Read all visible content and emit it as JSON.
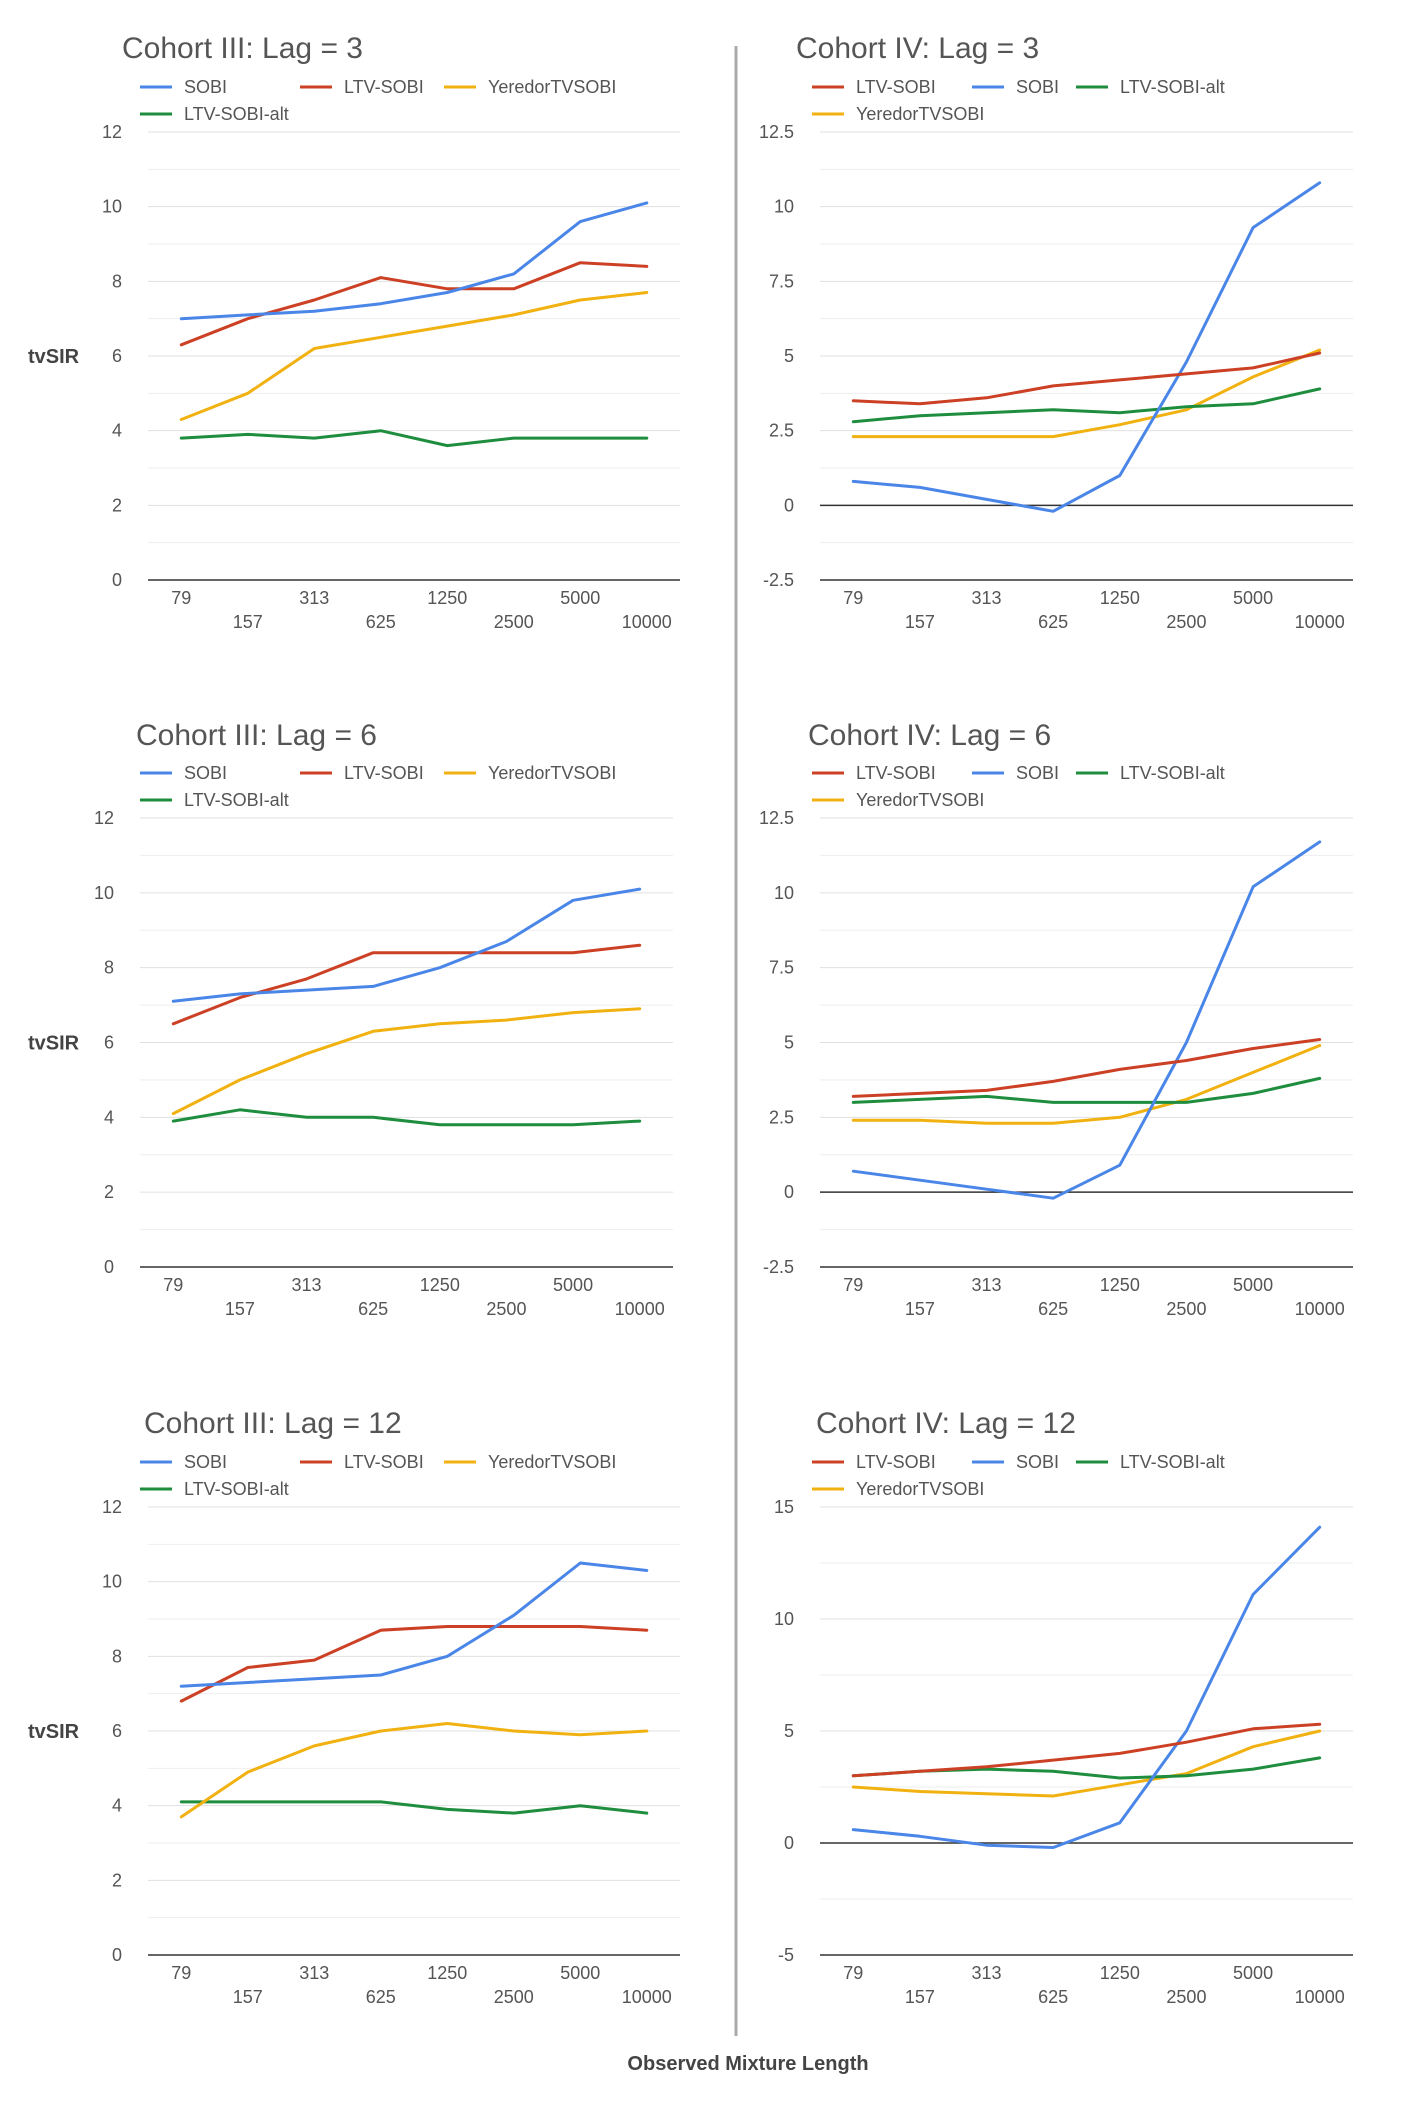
{
  "figure": {
    "y_axis_title": "tvSIR",
    "x_axis_title": "Observed Mixture Length"
  },
  "chart_data": [
    {
      "type": "line",
      "title": "Cohort III: Lag = 3",
      "ylabel": "tvSIR",
      "categories": [
        "79",
        "157",
        "313",
        "625",
        "1250",
        "2500",
        "5000",
        "10000"
      ],
      "ylim": [
        0,
        12
      ],
      "yticks": [
        "0",
        "2",
        "4",
        "6",
        "8",
        "10",
        "12"
      ],
      "series": [
        {
          "name": "SOBI",
          "color": "#4a86e8",
          "values": [
            7.0,
            7.1,
            7.2,
            7.4,
            7.7,
            8.2,
            9.6,
            10.1
          ]
        },
        {
          "name": "LTV-SOBI",
          "color": "#cc4125",
          "values": [
            6.3,
            7.0,
            7.5,
            8.1,
            7.8,
            7.8,
            8.5,
            8.4
          ]
        },
        {
          "name": "YeredorTVSOBI",
          "color": "#f1b211",
          "values": [
            4.3,
            5.0,
            6.2,
            6.5,
            6.8,
            7.1,
            7.5,
            7.7
          ]
        },
        {
          "name": "LTV-SOBI-alt",
          "color": "#1e8e3e",
          "values": [
            3.8,
            3.9,
            3.8,
            4.0,
            3.6,
            3.8,
            3.8,
            3.8
          ]
        }
      ]
    },
    {
      "type": "line",
      "title": "Cohort IV: Lag = 3",
      "categories": [
        "79",
        "157",
        "313",
        "625",
        "1250",
        "2500",
        "5000",
        "10000"
      ],
      "ylim": [
        -2.5,
        12.5
      ],
      "yticks": [
        "-2.5",
        "0",
        "2.5",
        "5",
        "7.5",
        "10",
        "12.5"
      ],
      "series": [
        {
          "name": "LTV-SOBI",
          "color": "#cc4125",
          "values": [
            3.5,
            3.4,
            3.6,
            4.0,
            4.2,
            4.4,
            4.6,
            5.1
          ]
        },
        {
          "name": "SOBI",
          "color": "#4a86e8",
          "values": [
            0.8,
            0.6,
            0.2,
            -0.2,
            1.0,
            4.8,
            9.3,
            10.8
          ]
        },
        {
          "name": "LTV-SOBI-alt",
          "color": "#1e8e3e",
          "values": [
            2.8,
            3.0,
            3.1,
            3.2,
            3.1,
            3.3,
            3.4,
            3.9
          ]
        },
        {
          "name": "YeredorTVSOBI",
          "color": "#f1b211",
          "values": [
            2.3,
            2.3,
            2.3,
            2.3,
            2.7,
            3.2,
            4.3,
            5.2
          ]
        }
      ]
    },
    {
      "type": "line",
      "title": "Cohort III: Lag = 6",
      "ylabel": "tvSIR",
      "categories": [
        "79",
        "157",
        "313",
        "625",
        "1250",
        "2500",
        "5000",
        "10000"
      ],
      "ylim": [
        0,
        12
      ],
      "yticks": [
        "0",
        "2",
        "4",
        "6",
        "8",
        "10",
        "12"
      ],
      "series": [
        {
          "name": "SOBI",
          "color": "#4a86e8",
          "values": [
            7.1,
            7.3,
            7.4,
            7.5,
            8.0,
            8.7,
            9.8,
            10.1
          ]
        },
        {
          "name": "LTV-SOBI",
          "color": "#cc4125",
          "values": [
            6.5,
            7.2,
            7.7,
            8.4,
            8.4,
            8.4,
            8.4,
            8.6
          ]
        },
        {
          "name": "YeredorTVSOBI",
          "color": "#f1b211",
          "values": [
            4.1,
            5.0,
            5.7,
            6.3,
            6.5,
            6.6,
            6.8,
            6.9
          ]
        },
        {
          "name": "LTV-SOBI-alt",
          "color": "#1e8e3e",
          "values": [
            3.9,
            4.2,
            4.0,
            4.0,
            3.8,
            3.8,
            3.8,
            3.9
          ]
        }
      ]
    },
    {
      "type": "line",
      "title": "Cohort IV: Lag = 6",
      "categories": [
        "79",
        "157",
        "313",
        "625",
        "1250",
        "2500",
        "5000",
        "10000"
      ],
      "ylim": [
        -2.5,
        12.5
      ],
      "yticks": [
        "-2.5",
        "0",
        "2.5",
        "5",
        "7.5",
        "10",
        "12.5"
      ],
      "series": [
        {
          "name": "LTV-SOBI",
          "color": "#cc4125",
          "values": [
            3.2,
            3.3,
            3.4,
            3.7,
            4.1,
            4.4,
            4.8,
            5.1
          ]
        },
        {
          "name": "SOBI",
          "color": "#4a86e8",
          "values": [
            0.7,
            0.4,
            0.1,
            -0.2,
            0.9,
            5.0,
            10.2,
            11.7
          ]
        },
        {
          "name": "LTV-SOBI-alt",
          "color": "#1e8e3e",
          "values": [
            3.0,
            3.1,
            3.2,
            3.0,
            3.0,
            3.0,
            3.3,
            3.8
          ]
        },
        {
          "name": "YeredorTVSOBI",
          "color": "#f1b211",
          "values": [
            2.4,
            2.4,
            2.3,
            2.3,
            2.5,
            3.1,
            4.0,
            4.9
          ]
        }
      ]
    },
    {
      "type": "line",
      "title": "Cohort III: Lag = 12",
      "ylabel": "tvSIR",
      "categories": [
        "79",
        "157",
        "313",
        "625",
        "1250",
        "2500",
        "5000",
        "10000"
      ],
      "ylim": [
        0,
        12
      ],
      "yticks": [
        "0",
        "2",
        "4",
        "6",
        "8",
        "10",
        "12"
      ],
      "series": [
        {
          "name": "SOBI",
          "color": "#4a86e8",
          "values": [
            7.2,
            7.3,
            7.4,
            7.5,
            8.0,
            9.1,
            10.5,
            10.3
          ]
        },
        {
          "name": "LTV-SOBI",
          "color": "#cc4125",
          "values": [
            6.8,
            7.7,
            7.9,
            8.7,
            8.8,
            8.8,
            8.8,
            8.7
          ]
        },
        {
          "name": "YeredorTVSOBI",
          "color": "#f1b211",
          "values": [
            3.7,
            4.9,
            5.6,
            6.0,
            6.2,
            6.0,
            5.9,
            6.0
          ]
        },
        {
          "name": "LTV-SOBI-alt",
          "color": "#1e8e3e",
          "values": [
            4.1,
            4.1,
            4.1,
            4.1,
            3.9,
            3.8,
            4.0,
            3.8
          ]
        }
      ]
    },
    {
      "type": "line",
      "title": "Cohort IV: Lag = 12",
      "categories": [
        "79",
        "157",
        "313",
        "625",
        "1250",
        "2500",
        "5000",
        "10000"
      ],
      "ylim": [
        -5,
        15
      ],
      "yticks": [
        "-5",
        "0",
        "5",
        "10",
        "15"
      ],
      "series": [
        {
          "name": "LTV-SOBI",
          "color": "#cc4125",
          "values": [
            3.0,
            3.2,
            3.4,
            3.7,
            4.0,
            4.5,
            5.1,
            5.3
          ]
        },
        {
          "name": "SOBI",
          "color": "#4a86e8",
          "values": [
            0.6,
            0.3,
            -0.1,
            -0.2,
            0.9,
            5.0,
            11.1,
            14.1
          ]
        },
        {
          "name": "LTV-SOBI-alt",
          "color": "#1e8e3e",
          "values": [
            3.0,
            3.2,
            3.3,
            3.2,
            2.9,
            3.0,
            3.3,
            3.8
          ]
        },
        {
          "name": "YeredorTVSOBI",
          "color": "#f1b211",
          "values": [
            2.5,
            2.3,
            2.2,
            2.1,
            2.6,
            3.1,
            4.3,
            5.0
          ]
        }
      ]
    }
  ]
}
